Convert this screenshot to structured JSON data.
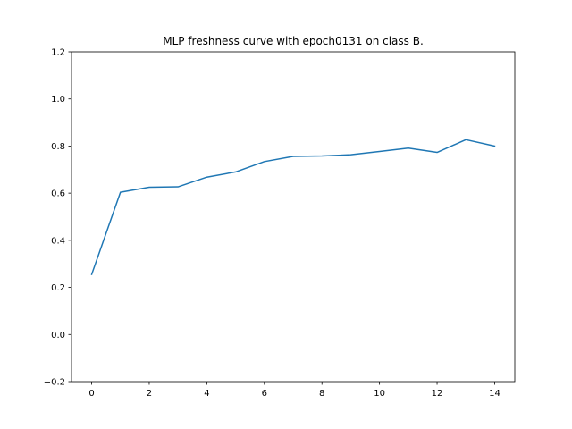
{
  "chart_data": {
    "type": "line",
    "title": "MLP freshness curve with epoch0131 on class B.",
    "xlabel": "",
    "ylabel": "",
    "xlim": [
      -0.7,
      14.7
    ],
    "ylim": [
      -0.2,
      1.2
    ],
    "xticks": [
      0,
      2,
      4,
      6,
      8,
      10,
      12,
      14
    ],
    "yticks": [
      -0.2,
      0.0,
      0.2,
      0.4,
      0.6,
      0.8,
      1.0,
      1.2
    ],
    "xtick_labels": [
      "0",
      "2",
      "4",
      "6",
      "8",
      "10",
      "12",
      "14"
    ],
    "ytick_labels": [
      "−0.2",
      "0.0",
      "0.2",
      "0.4",
      "0.6",
      "0.8",
      "1.0",
      "1.2"
    ],
    "grid": false,
    "series": [
      {
        "color": "#1f77b4",
        "x": [
          0,
          1,
          2,
          3,
          4,
          5,
          6,
          7,
          8,
          9,
          10,
          11,
          12,
          13,
          14
        ],
        "y": [
          0.255,
          0.604,
          0.625,
          0.627,
          0.668,
          0.69,
          0.734,
          0.756,
          0.758,
          0.763,
          0.777,
          0.791,
          0.773,
          0.827,
          0.8
        ]
      }
    ]
  }
}
